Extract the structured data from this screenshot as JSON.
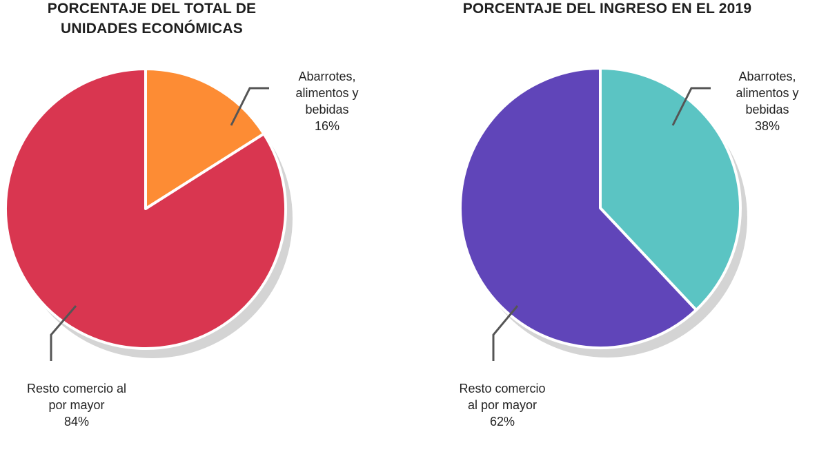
{
  "chart_data": [
    {
      "type": "pie",
      "title": "PORCENTAJE DEL TOTAL DE UNIDADES ECONÓMICAS",
      "slices": [
        {
          "label_lines": [
            "Abarrotes,",
            "alimentos y",
            "bebidas"
          ],
          "value": 16,
          "value_label": "16%",
          "color": "#fd8c34"
        },
        {
          "label_lines": [
            "Resto comercio al",
            "por mayor"
          ],
          "value": 84,
          "value_label": "84%",
          "color": "#d93650"
        }
      ]
    },
    {
      "type": "pie",
      "title": "PORCENTAJE DEL INGRESO EN EL 2019",
      "slices": [
        {
          "label_lines": [
            "Abarrotes,",
            "alimentos y",
            "bebidas"
          ],
          "value": 38,
          "value_label": "38%",
          "color": "#5bc4c3"
        },
        {
          "label_lines": [
            "Resto comercio",
            "al por mayor"
          ],
          "value": 62,
          "value_label": "62%",
          "color": "#6045b9"
        }
      ]
    }
  ]
}
